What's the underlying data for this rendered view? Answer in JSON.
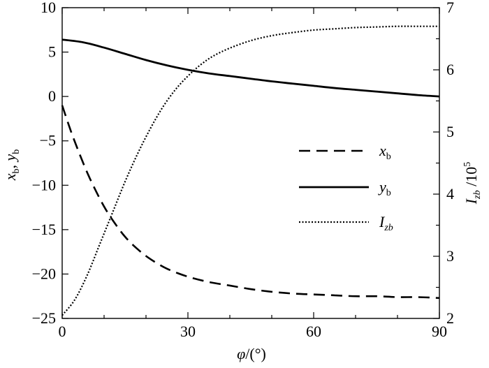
{
  "chart_data": {
    "type": "line",
    "xlabel": {
      "main": "φ",
      "rest": "/(°)"
    },
    "ylabel_left": {
      "x": "x",
      "x_sub": "b",
      "sep": ", ",
      "y": "y",
      "y_sub": "b"
    },
    "ylabel_right": {
      "I": "I",
      "I_sub": "zb",
      "rest": " /10",
      "sup": "5"
    },
    "xlim": [
      0,
      90
    ],
    "ylim_left": [
      -25,
      10
    ],
    "ylim_right": [
      2,
      7
    ],
    "x_ticks": [
      0,
      30,
      60,
      90
    ],
    "y_left_ticks": [
      10,
      5,
      0,
      -5,
      -10,
      -15,
      -20,
      -25
    ],
    "y_left_tick_labels": [
      "10",
      "5",
      "0",
      "−5",
      "−10",
      "−15",
      "−20",
      "−25"
    ],
    "y_right_ticks": [
      7,
      6,
      5,
      4,
      3,
      2
    ],
    "y_right_tick_labels": [
      "7",
      "6",
      "5",
      "4",
      "3",
      "2"
    ],
    "grid": false,
    "legend_position": "center-right",
    "series": [
      {
        "name": "x_b",
        "legend_main": "x",
        "legend_sub": "b",
        "axis": "left",
        "style": "dashed",
        "x": [
          0,
          2,
          4,
          6,
          8,
          10,
          12,
          15,
          18,
          21,
          25,
          30,
          35,
          40,
          45,
          50,
          55,
          60,
          65,
          70,
          75,
          80,
          85,
          90
        ],
        "y": [
          -1.0,
          -3.8,
          -6.3,
          -8.6,
          -10.6,
          -12.4,
          -13.9,
          -15.8,
          -17.2,
          -18.3,
          -19.4,
          -20.3,
          -20.9,
          -21.3,
          -21.7,
          -22.0,
          -22.2,
          -22.3,
          -22.4,
          -22.5,
          -22.5,
          -22.6,
          -22.6,
          -22.7
        ]
      },
      {
        "name": "y_b",
        "legend_main": "y",
        "legend_sub": "b",
        "axis": "left",
        "style": "solid",
        "x": [
          0,
          5,
          10,
          15,
          20,
          25,
          30,
          35,
          40,
          45,
          50,
          55,
          60,
          65,
          70,
          75,
          80,
          85,
          90
        ],
        "y": [
          6.4,
          6.1,
          5.5,
          4.8,
          4.1,
          3.5,
          3.0,
          2.6,
          2.3,
          2.0,
          1.7,
          1.45,
          1.2,
          0.95,
          0.75,
          0.55,
          0.35,
          0.15,
          0.0
        ]
      },
      {
        "name": "I_zb",
        "legend_main": "I",
        "legend_sub": "zb",
        "axis": "right",
        "style": "dotted",
        "x": [
          0,
          3,
          6,
          9,
          12,
          15,
          18,
          21,
          24,
          27,
          30,
          33,
          36,
          40,
          45,
          50,
          55,
          60,
          65,
          70,
          75,
          80,
          85,
          90
        ],
        "y": [
          2.05,
          2.3,
          2.7,
          3.2,
          3.7,
          4.2,
          4.65,
          5.05,
          5.4,
          5.68,
          5.9,
          6.08,
          6.22,
          6.35,
          6.47,
          6.55,
          6.6,
          6.64,
          6.66,
          6.68,
          6.69,
          6.7,
          6.7,
          6.7
        ]
      }
    ]
  }
}
